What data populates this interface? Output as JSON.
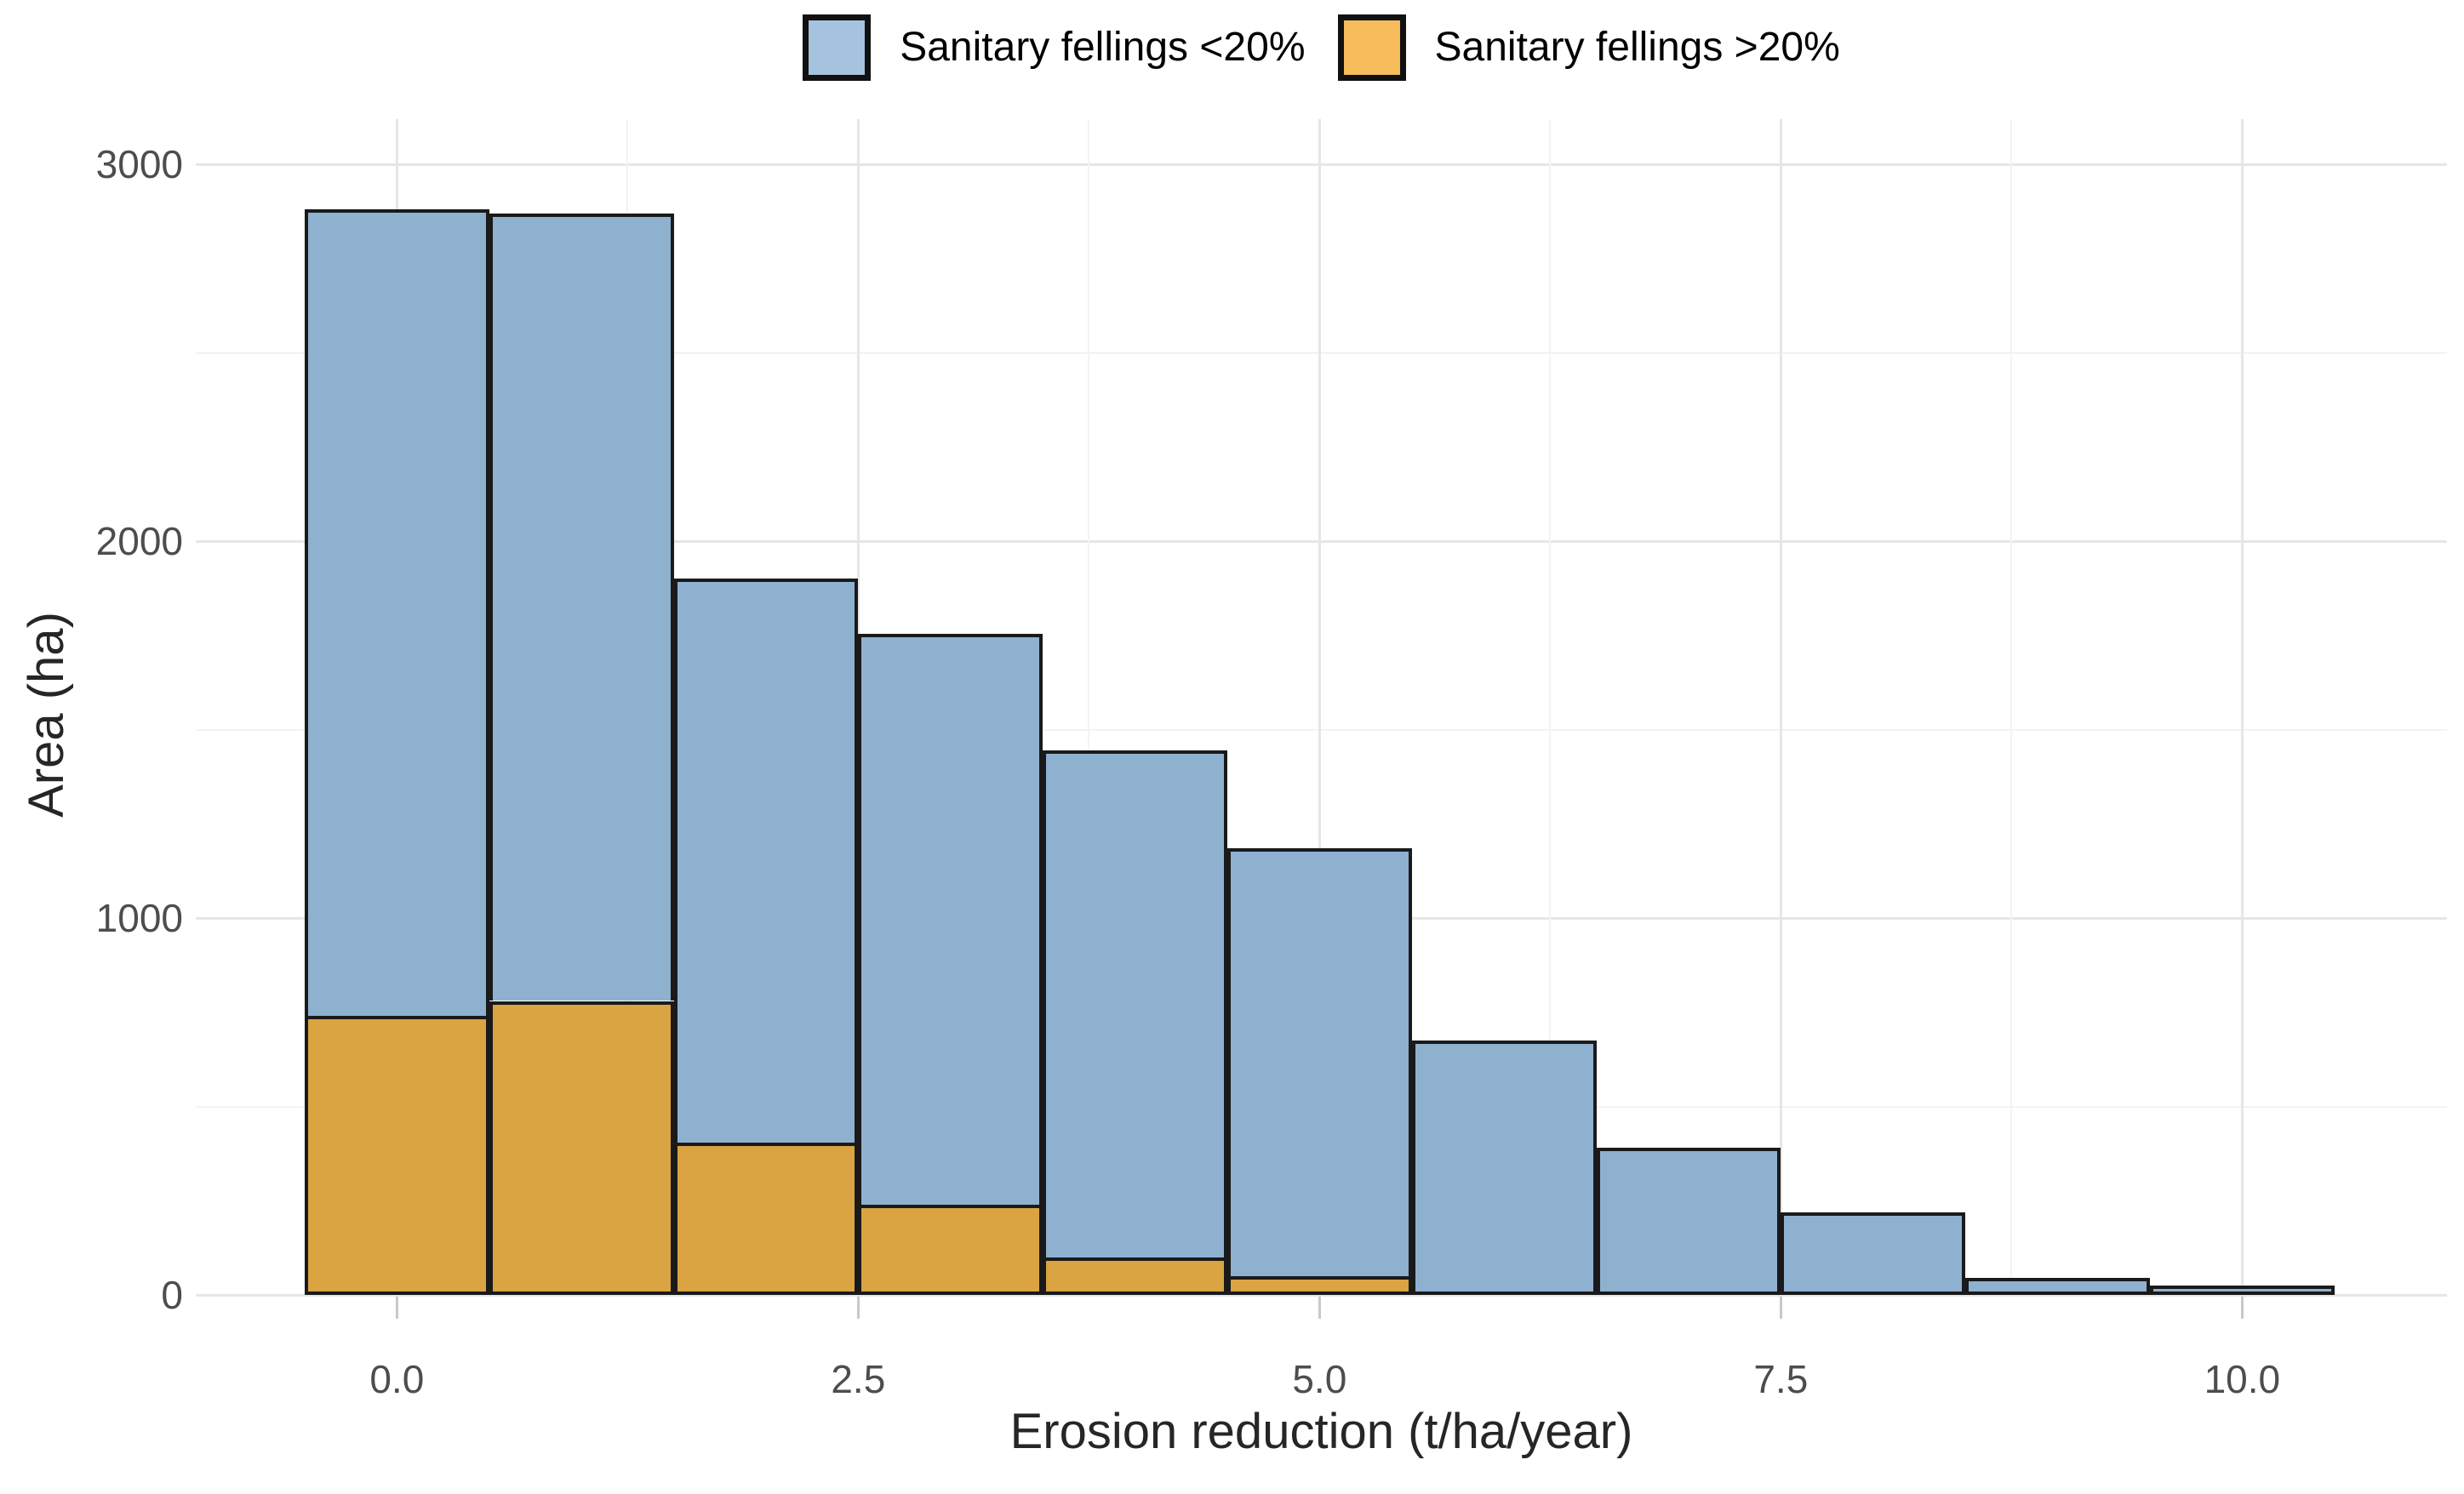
{
  "chart_data": {
    "type": "bar",
    "subtype": "stacked-histogram",
    "title": "",
    "xlabel": "Erosion reduction (t/ha/year)",
    "ylabel": "Area (ha)",
    "bin_centers": [
      0,
      1,
      2,
      3,
      4,
      5,
      6,
      7,
      8,
      9,
      10
    ],
    "bin_width": 1,
    "series": [
      {
        "name": "Sanitary fellings >20%",
        "stack_order": "bottom",
        "values": [
          740,
          780,
          405,
          240,
          100,
          50,
          0,
          0,
          0,
          0,
          0
        ]
      },
      {
        "name": "Sanitary fellings <20%",
        "stack_order": "top",
        "values": [
          2140,
          2090,
          1495,
          1515,
          1345,
          1135,
          675,
          390,
          220,
          45,
          25
        ]
      }
    ],
    "stack_totals": [
      2880,
      2870,
      1900,
      1755,
      1445,
      1185,
      675,
      390,
      220,
      45,
      25
    ],
    "x_ticks": {
      "values": [
        0,
        2.5,
        5,
        7.5,
        10
      ],
      "labels": [
        "0.0",
        "2.5",
        "5.0",
        "7.5",
        "10.0"
      ]
    },
    "y_ticks": {
      "values": [
        0,
        1000,
        2000,
        3000
      ],
      "labels": [
        "0",
        "1000",
        "2000",
        "3000"
      ]
    },
    "y_minor": [
      500,
      1500,
      2500
    ],
    "x_minor": [
      1.25,
      3.75,
      6.25,
      8.75
    ],
    "xlim": [
      -1.09,
      11.11
    ],
    "ylim": [
      0,
      3120
    ],
    "grid": "major+minor",
    "legend_position": "top-center"
  },
  "legend": {
    "items": [
      {
        "label": "Sanitary fellings <20%",
        "key_color": "#A5C3DE",
        "series": "blue"
      },
      {
        "label": "Sanitary fellings >20%",
        "key_color": "#F7BC5B",
        "series": "orange"
      }
    ]
  },
  "colors": {
    "bar_blue": "#8FB1D0",
    "bar_orange": "#D9A441",
    "bar_outline": "#1A1A1A",
    "legend_key_blue": "#A5C3DE",
    "legend_key_orange": "#F7BC5B",
    "grid_major": "#E6E6E6",
    "grid_minor": "#F3F3F3",
    "tick_label": "#4D4D4D",
    "axis_title": "#262626",
    "tick_mark": "#C9C9C9",
    "background": "#FFFFFF"
  }
}
